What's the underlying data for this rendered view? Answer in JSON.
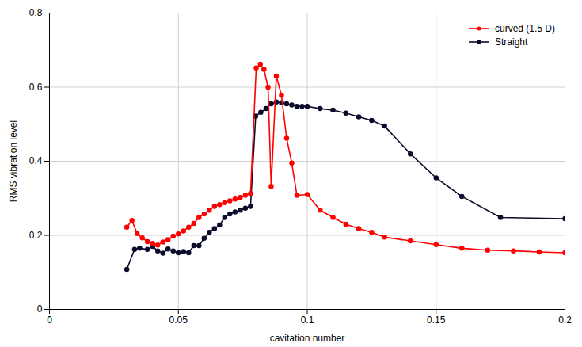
{
  "chart_data": {
    "type": "line",
    "xlabel": "cavitation number",
    "ylabel": "RMS vibration level",
    "xlim": [
      0,
      0.2
    ],
    "ylim": [
      0,
      0.8
    ],
    "xticks": [
      0,
      0.05,
      0.1,
      0.15,
      0.2
    ],
    "yticks": [
      0,
      0.2,
      0.4,
      0.6,
      0.8
    ],
    "grid": true,
    "legend": "upper right",
    "marker": "circle",
    "series": [
      {
        "name": "curved (1.5 D)",
        "color": "#FF0000",
        "x": [
          0.03,
          0.032,
          0.034,
          0.036,
          0.038,
          0.04,
          0.042,
          0.044,
          0.046,
          0.048,
          0.05,
          0.052,
          0.054,
          0.056,
          0.058,
          0.06,
          0.062,
          0.064,
          0.066,
          0.068,
          0.07,
          0.072,
          0.074,
          0.076,
          0.078,
          0.0802,
          0.0818,
          0.0832,
          0.0848,
          0.086,
          0.088,
          0.09,
          0.092,
          0.094,
          0.096,
          0.1,
          0.105,
          0.11,
          0.115,
          0.12,
          0.125,
          0.13,
          0.14,
          0.15,
          0.16,
          0.17,
          0.18,
          0.19,
          0.2
        ],
        "values": [
          0.222,
          0.24,
          0.205,
          0.193,
          0.183,
          0.178,
          0.174,
          0.182,
          0.188,
          0.198,
          0.204,
          0.212,
          0.222,
          0.232,
          0.248,
          0.258,
          0.268,
          0.278,
          0.283,
          0.288,
          0.293,
          0.298,
          0.302,
          0.308,
          0.313,
          0.652,
          0.662,
          0.648,
          0.6,
          0.332,
          0.63,
          0.578,
          0.462,
          0.395,
          0.308,
          0.31,
          0.268,
          0.248,
          0.23,
          0.218,
          0.208,
          0.195,
          0.185,
          0.175,
          0.165,
          0.16,
          0.158,
          0.155,
          0.153
        ]
      },
      {
        "name": "Straight",
        "color": "#0a0a2a",
        "x": [
          0.03,
          0.033,
          0.035,
          0.038,
          0.04,
          0.042,
          0.044,
          0.046,
          0.048,
          0.05,
          0.052,
          0.054,
          0.056,
          0.058,
          0.06,
          0.062,
          0.064,
          0.066,
          0.068,
          0.07,
          0.072,
          0.074,
          0.076,
          0.078,
          0.08,
          0.082,
          0.084,
          0.086,
          0.088,
          0.09,
          0.092,
          0.094,
          0.096,
          0.098,
          0.1,
          0.105,
          0.11,
          0.115,
          0.12,
          0.125,
          0.13,
          0.14,
          0.15,
          0.16,
          0.175,
          0.2
        ],
        "values": [
          0.108,
          0.162,
          0.165,
          0.162,
          0.17,
          0.158,
          0.152,
          0.163,
          0.158,
          0.153,
          0.156,
          0.153,
          0.172,
          0.172,
          0.192,
          0.208,
          0.218,
          0.228,
          0.248,
          0.258,
          0.263,
          0.268,
          0.273,
          0.278,
          0.522,
          0.532,
          0.542,
          0.555,
          0.56,
          0.558,
          0.555,
          0.552,
          0.548,
          0.548,
          0.548,
          0.542,
          0.538,
          0.53,
          0.52,
          0.51,
          0.495,
          0.42,
          0.355,
          0.305,
          0.248,
          0.245
        ]
      }
    ]
  }
}
